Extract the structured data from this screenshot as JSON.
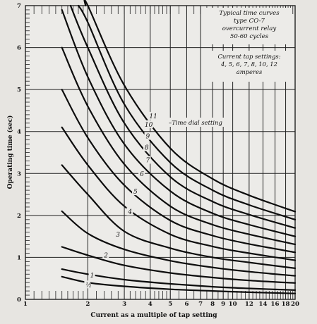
{
  "chart_data": {
    "type": "line",
    "title": [
      "Typical time curves",
      "type CO-7",
      "overcurrent relay",
      "50-60 cycles"
    ],
    "settings_note": [
      "Current tap settings:",
      "4, 5, 6, 7, 8, 10, 12",
      "amperes"
    ],
    "xlabel": "Current as a multiple of tap setting",
    "ylabel": "Operating time (sec)",
    "x_scale": "log",
    "xlim": [
      1,
      20
    ],
    "ylim": [
      0,
      7
    ],
    "x_ticks": [
      {
        "v": 1,
        "label": "1"
      },
      {
        "v": 2,
        "label": "2"
      },
      {
        "v": 3,
        "label": "3"
      },
      {
        "v": 4,
        "label": "4"
      },
      {
        "v": 5,
        "label": "5"
      },
      {
        "v": 6,
        "label": "6"
      },
      {
        "v": 7,
        "label": "7"
      },
      {
        "v": 8,
        "label": "8"
      },
      {
        "v": 9,
        "label": "9"
      },
      {
        "v": 10,
        "label": "10"
      },
      {
        "v": 12,
        "label": "12"
      },
      {
        "v": 14,
        "label": "14"
      },
      {
        "v": 16,
        "label": "16"
      },
      {
        "v": 18,
        "label": "18"
      },
      {
        "v": 20,
        "label": "20"
      }
    ],
    "y_ticks": [
      0,
      1,
      2,
      3,
      4,
      5,
      6,
      7
    ],
    "grid": true,
    "dial_label_prefix": "Time dial setting",
    "series": [
      {
        "name": "1/2",
        "x": [
          1.5,
          2,
          3,
          5,
          8,
          12,
          20
        ],
        "y": [
          0.54,
          0.4,
          0.31,
          0.24,
          0.2,
          0.17,
          0.14
        ]
      },
      {
        "name": "1",
        "x": [
          1.5,
          2,
          3,
          5,
          8,
          12,
          20
        ],
        "y": [
          0.72,
          0.6,
          0.47,
          0.37,
          0.3,
          0.26,
          0.22
        ]
      },
      {
        "name": "2",
        "x": [
          1.5,
          2,
          3,
          5,
          8,
          12,
          20
        ],
        "y": [
          1.25,
          1.05,
          0.81,
          0.63,
          0.52,
          0.45,
          0.39
        ]
      },
      {
        "name": "3",
        "x": [
          1.5,
          2,
          3,
          5,
          8,
          12,
          20
        ],
        "y": [
          2.1,
          1.57,
          1.19,
          0.92,
          0.76,
          0.66,
          0.56
        ]
      },
      {
        "name": "4",
        "x": [
          1.5,
          2,
          3,
          5,
          8,
          12,
          20
        ],
        "y": [
          3.2,
          2.5,
          1.62,
          1.22,
          1.0,
          0.88,
          0.74
        ]
      },
      {
        "name": "5",
        "x": [
          1.5,
          2,
          3,
          5,
          8,
          12,
          20
        ],
        "y": [
          4.1,
          3.2,
          2.22,
          1.55,
          1.26,
          1.1,
          0.93
        ]
      },
      {
        "name": "6",
        "x": [
          1.5,
          2,
          3,
          5,
          8,
          12,
          20
        ],
        "y": [
          5.0,
          3.85,
          2.72,
          1.88,
          1.52,
          1.32,
          1.12
        ]
      },
      {
        "name": "7",
        "x": [
          1.5,
          2,
          3,
          5,
          8,
          12,
          20
        ],
        "y": [
          6.0,
          4.6,
          3.22,
          2.22,
          1.78,
          1.55,
          1.31
        ]
      },
      {
        "name": "8",
        "x": [
          1.5,
          2,
          3,
          5,
          8,
          12,
          20
        ],
        "y": [
          6.9,
          5.3,
          3.7,
          2.58,
          2.05,
          1.78,
          1.5
        ]
      },
      {
        "name": "9",
        "x": [
          1.65,
          2,
          3,
          5,
          8,
          12,
          20
        ],
        "y": [
          7.0,
          6.0,
          4.2,
          2.92,
          2.33,
          2.02,
          1.7
        ]
      },
      {
        "name": "10",
        "x": [
          1.8,
          2,
          3,
          5,
          8,
          12,
          20
        ],
        "y": [
          7.0,
          6.6,
          4.65,
          3.26,
          2.6,
          2.25,
          1.9
        ]
      },
      {
        "name": "11",
        "x": [
          1.95,
          2,
          3,
          5,
          8,
          12,
          20
        ],
        "y": [
          7.0,
          7.0,
          5.1,
          3.6,
          2.87,
          2.48,
          2.09
        ]
      }
    ],
    "dial_labels": [
      {
        "series": "1/2",
        "text": "½",
        "x": 2,
        "y": 0.33
      },
      {
        "series": "1",
        "text": "1",
        "x": 2.1,
        "y": 0.55
      },
      {
        "series": "2",
        "text": "2",
        "x": 2.45,
        "y": 1.03
      },
      {
        "series": "3",
        "text": "3",
        "x": 2.8,
        "y": 1.53
      },
      {
        "series": "4",
        "text": "4",
        "x": 3.2,
        "y": 2.07
      },
      {
        "series": "5",
        "x": 3.4,
        "y": 2.55,
        "text": "5"
      },
      {
        "series": "6",
        "x": 3.65,
        "y": 2.97,
        "text": "6"
      },
      {
        "series": "7",
        "x": 3.9,
        "y": 3.3,
        "text": "7"
      },
      {
        "series": "8",
        "x": 3.85,
        "y": 3.6,
        "text": "8"
      },
      {
        "series": "9",
        "x": 3.9,
        "y": 3.87,
        "text": "9"
      },
      {
        "series": "10",
        "x": 3.85,
        "y": 4.15,
        "text": "10"
      },
      {
        "series": "11",
        "x": 4.05,
        "y": 4.35,
        "text": "11"
      }
    ]
  }
}
